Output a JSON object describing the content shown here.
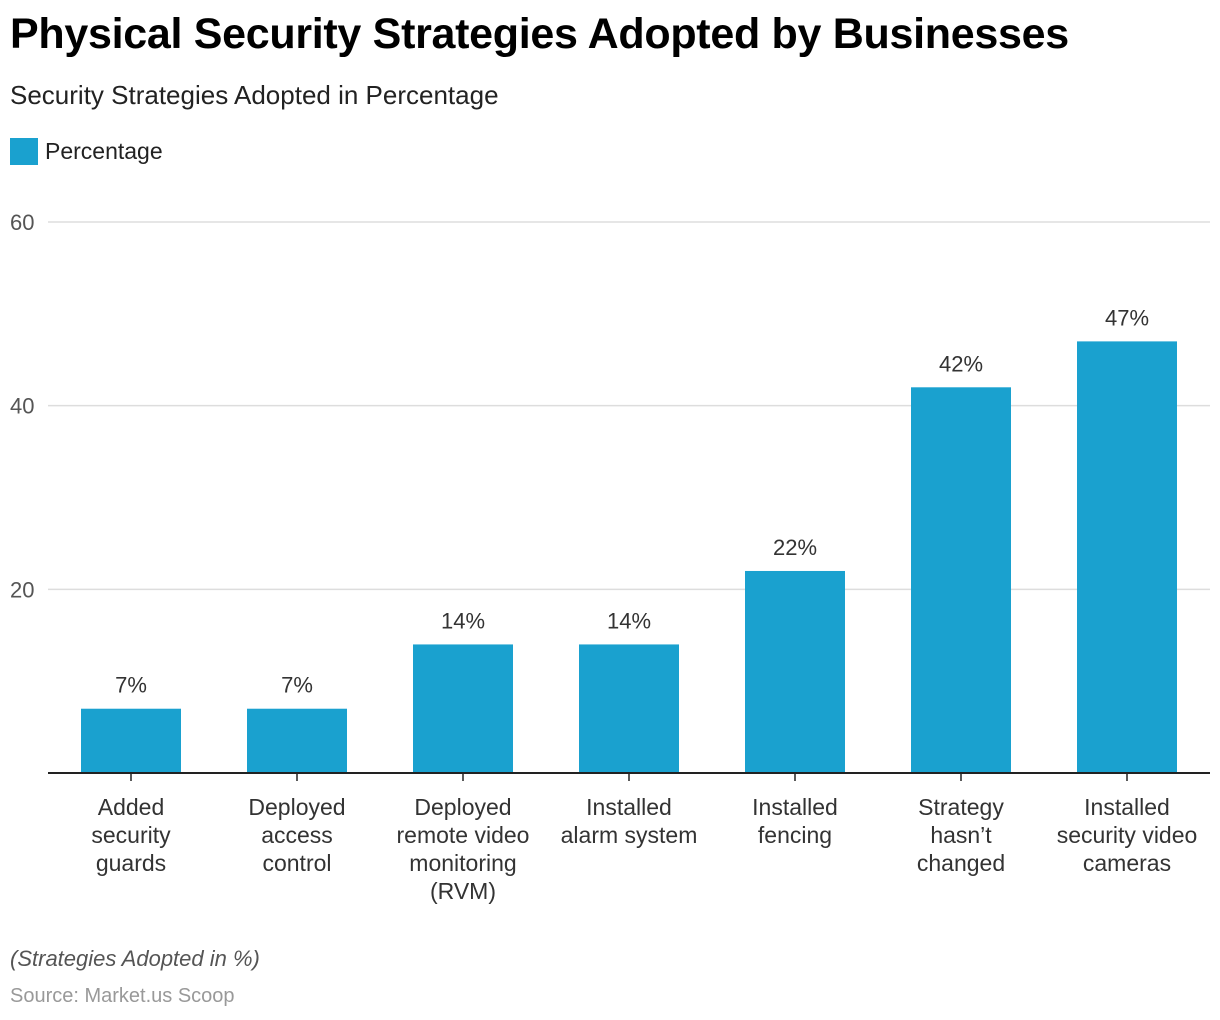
{
  "title": "Physical Security Strategies Adopted by Businesses",
  "subtitle": "Security Strategies Adopted in Percentage",
  "footnote": "(Strategies Adopted in %)",
  "source": "Source: Market.us Scoop",
  "colors": {
    "bar": "#1aa1cf",
    "grid": "#dddddd",
    "axis": "#222222",
    "tick_text": "#555555"
  },
  "chart_data": {
    "type": "bar",
    "categories": [
      [
        "Added",
        "security",
        "guards"
      ],
      [
        "Deployed",
        "access",
        "control"
      ],
      [
        "Deployed",
        "remote video",
        "monitoring",
        "(RVM)"
      ],
      [
        "Installed",
        "alarm system"
      ],
      [
        "Installed",
        "fencing"
      ],
      [
        "Strategy",
        "hasn’t",
        "changed"
      ],
      [
        "Installed",
        "security video",
        "cameras"
      ]
    ],
    "series": [
      {
        "name": "Percentage",
        "values": [
          7,
          7,
          14,
          14,
          22,
          42,
          47
        ]
      }
    ],
    "data_labels": [
      "7%",
      "7%",
      "14%",
      "14%",
      "22%",
      "42%",
      "47%"
    ],
    "yticks": [
      20,
      40,
      60
    ],
    "ylim": [
      0,
      60
    ],
    "grid": true,
    "legend": "top-left"
  }
}
